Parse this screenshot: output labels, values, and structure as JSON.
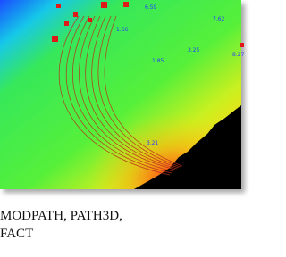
{
  "image": {
    "labels": [
      "6.59",
      "1.66",
      "7.62",
      "1.85",
      "3.25",
      "8.27",
      "3.21"
    ]
  },
  "caption": {
    "lines": [
      "MODPATH, PATH3D,",
      "FACT"
    ]
  }
}
